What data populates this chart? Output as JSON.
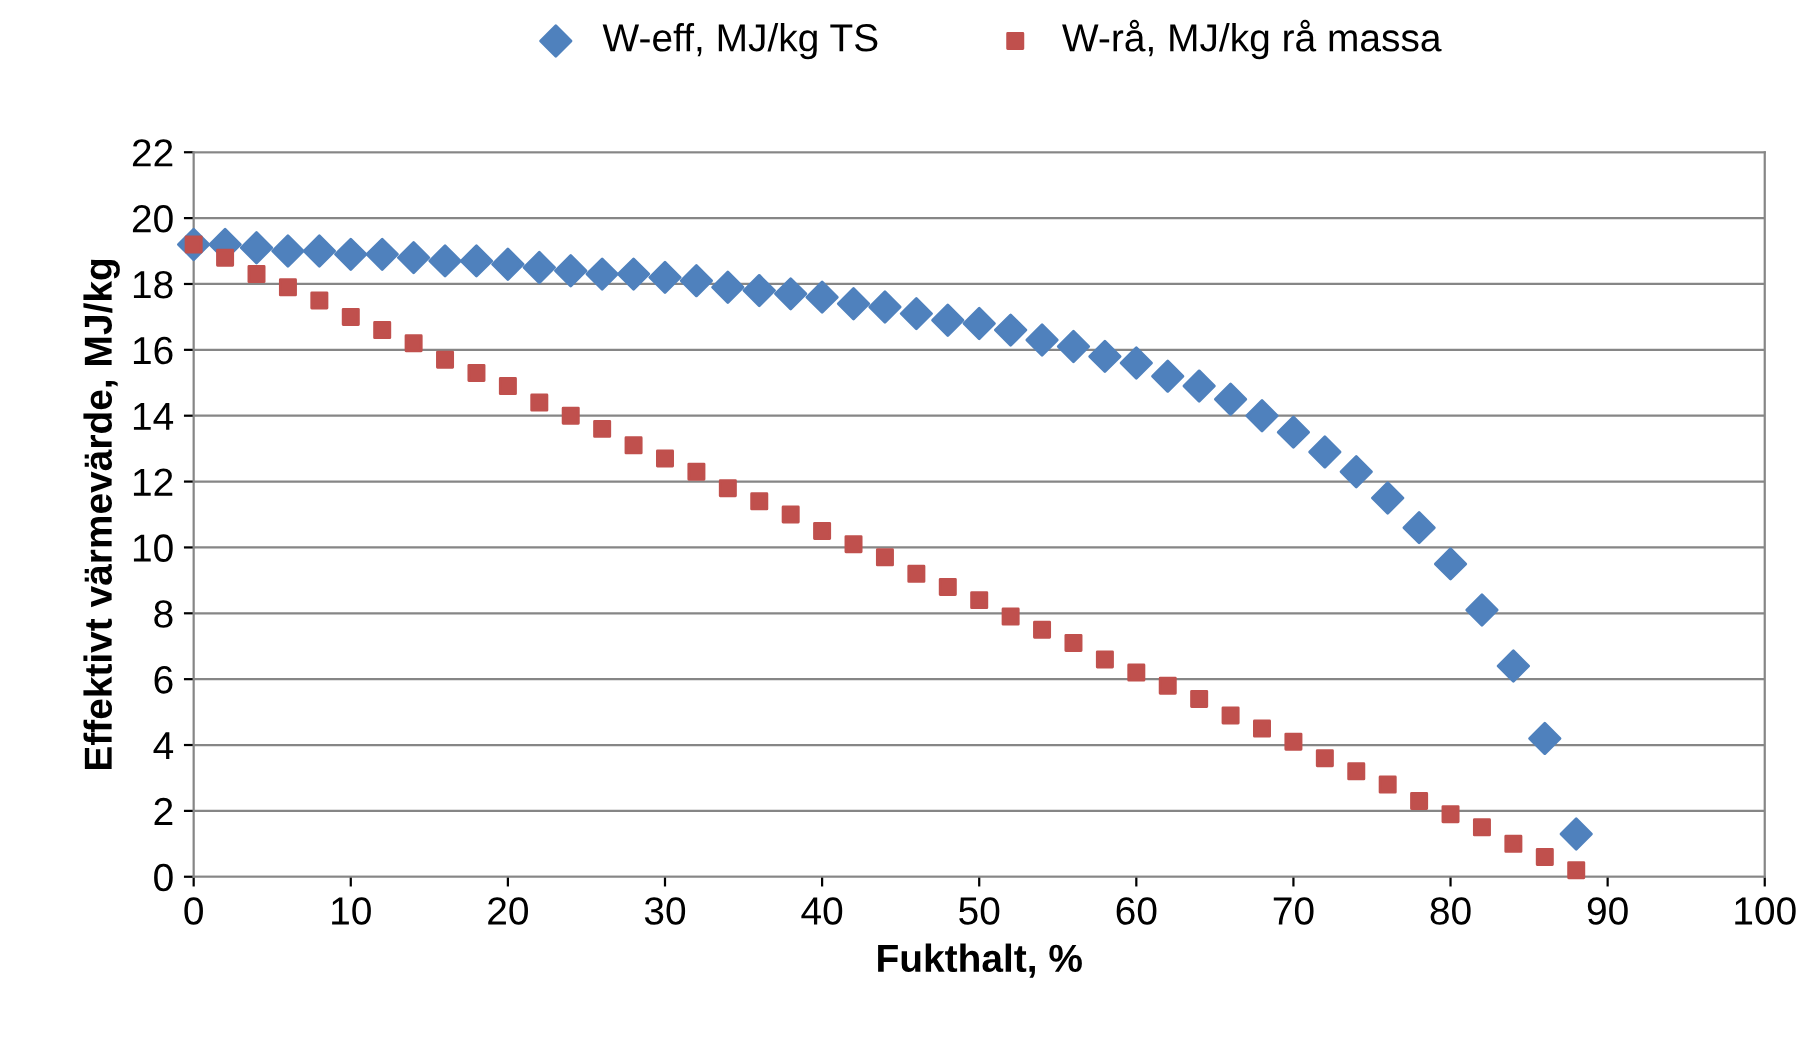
{
  "chart_data": {
    "type": "scatter",
    "xlabel": "Fukthalt, %",
    "ylabel": "Effektivt värmevärde, MJ/kg",
    "x": [
      0,
      2,
      4,
      6,
      8,
      10,
      12,
      14,
      16,
      18,
      20,
      22,
      24,
      26,
      28,
      30,
      32,
      34,
      36,
      38,
      40,
      42,
      44,
      46,
      48,
      50,
      52,
      54,
      56,
      58,
      60,
      62,
      64,
      66,
      68,
      70,
      72,
      74,
      76,
      78,
      80,
      82,
      84,
      86,
      88
    ],
    "series": [
      {
        "name": "W-eff, MJ/kg TS",
        "color": "#4f81bd",
        "marker": "diamond",
        "values": [
          19.2,
          19.2,
          19.1,
          19.0,
          19.0,
          18.9,
          18.9,
          18.8,
          18.7,
          18.7,
          18.6,
          18.5,
          18.4,
          18.3,
          18.3,
          18.2,
          18.1,
          17.9,
          17.8,
          17.7,
          17.6,
          17.4,
          17.3,
          17.1,
          16.9,
          16.8,
          16.6,
          16.3,
          16.1,
          15.8,
          15.6,
          15.2,
          14.9,
          14.5,
          14.0,
          13.5,
          12.9,
          12.3,
          11.5,
          10.6,
          9.5,
          8.1,
          6.4,
          4.2,
          1.3
        ]
      },
      {
        "name": "W-rå, MJ/kg rå massa",
        "color": "#c0504d",
        "marker": "square",
        "values": [
          19.2,
          18.8,
          18.3,
          17.9,
          17.5,
          17.0,
          16.6,
          16.2,
          15.7,
          15.3,
          14.9,
          14.4,
          14.0,
          13.6,
          13.1,
          12.7,
          12.3,
          11.8,
          11.4,
          11.0,
          10.5,
          10.1,
          9.7,
          9.2,
          8.8,
          8.4,
          7.9,
          7.5,
          7.1,
          6.6,
          6.2,
          5.8,
          5.4,
          4.9,
          4.5,
          4.1,
          3.6,
          3.2,
          2.8,
          2.3,
          1.9,
          1.5,
          1.0,
          0.6,
          0.2
        ]
      }
    ],
    "xlim": [
      0,
      100
    ],
    "xticks": [
      0,
      10,
      20,
      30,
      40,
      50,
      60,
      70,
      80,
      90,
      100
    ],
    "ylim": [
      0,
      22
    ],
    "yticks": [
      0,
      2,
      4,
      6,
      8,
      10,
      12,
      14,
      16,
      18,
      20,
      22
    ],
    "grid": "y",
    "legend": "top"
  }
}
